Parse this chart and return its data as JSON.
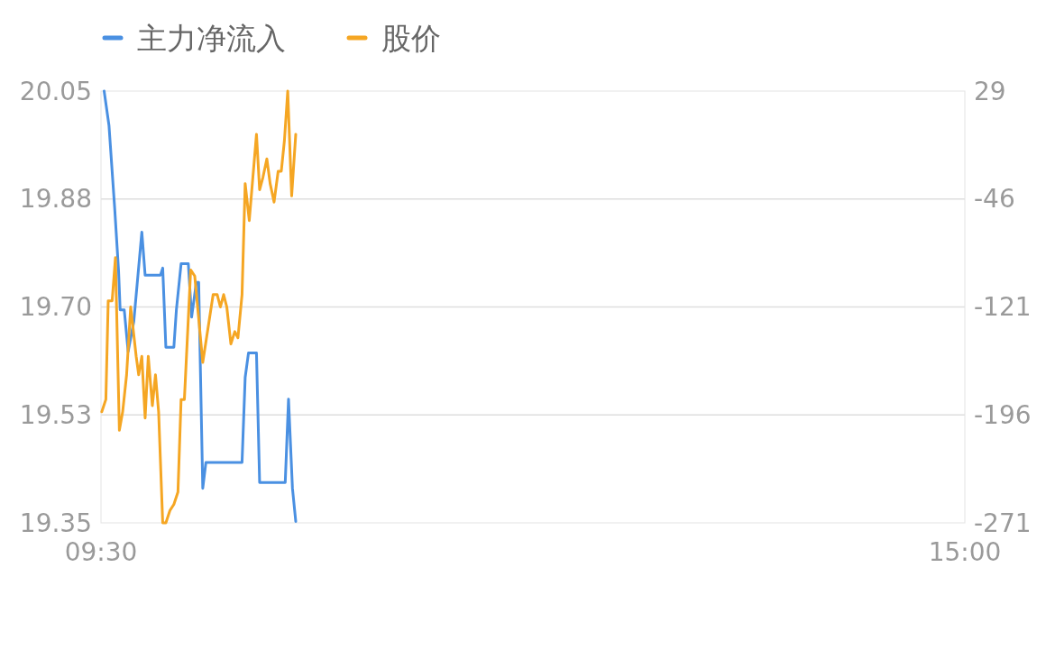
{
  "chart_data": {
    "type": "line",
    "xlim": [
      9.5,
      15
    ],
    "xticks": [
      {
        "value": 9.5,
        "label": "09:30"
      },
      {
        "value": 15,
        "label": "15:00"
      }
    ],
    "ylim": [
      19.35,
      20.05
    ],
    "yticks": [
      {
        "value": 20.05,
        "label": "20.05"
      },
      {
        "value": 19.875,
        "label": "19.88"
      },
      {
        "value": 19.7,
        "label": "19.70"
      },
      {
        "value": 19.525,
        "label": "19.53"
      },
      {
        "value": 19.35,
        "label": "19.35"
      }
    ],
    "y2lim": [
      -271,
      29
    ],
    "y2ticks": [
      29,
      -46,
      -121,
      -196,
      -271
    ],
    "grid": "y",
    "legend": "top left",
    "series": [
      {
        "name": "主力净流入",
        "color": "#4a90e2",
        "axis": "y2",
        "x": [
          9.52,
          9.551,
          9.587,
          9.612,
          9.622,
          9.648,
          9.673,
          9.709,
          9.76,
          9.781,
          9.878,
          9.893,
          9.913,
          9.964,
          9.98,
          10.01,
          10.056,
          10.077,
          10.107,
          10.122,
          10.148,
          10.168,
          10.398,
          10.418,
          10.439,
          10.49,
          10.51,
          10.673,
          10.694,
          10.719,
          10.74
        ],
        "values": [
          29,
          5,
          -52,
          -96,
          -123,
          -123,
          -152,
          -131,
          -69,
          -99,
          -99,
          -94,
          -149,
          -149,
          -123,
          -91,
          -91,
          -128,
          -104,
          -104,
          -247,
          -229,
          -229,
          -170,
          -153,
          -153,
          -243,
          -243,
          -185,
          -247,
          -270
        ]
      },
      {
        "name": "股价",
        "color": "#f5a623",
        "axis": "y",
        "x": [
          9.505,
          9.531,
          9.546,
          9.571,
          9.592,
          9.617,
          9.638,
          9.663,
          9.689,
          9.724,
          9.74,
          9.76,
          9.781,
          9.801,
          9.827,
          9.847,
          9.867,
          9.893,
          9.913,
          9.939,
          9.964,
          9.99,
          10.01,
          10.031,
          10.071,
          10.097,
          10.148,
          10.184,
          10.214,
          10.24,
          10.26,
          10.281,
          10.301,
          10.327,
          10.352,
          10.372,
          10.398,
          10.418,
          10.444,
          10.49,
          10.51,
          10.531,
          10.556,
          10.577,
          10.602,
          10.628,
          10.648,
          10.668,
          10.689,
          10.714,
          10.74
        ],
        "values": [
          19.53,
          19.55,
          19.71,
          19.71,
          19.78,
          19.5,
          19.53,
          19.59,
          19.7,
          19.62,
          19.59,
          19.62,
          19.52,
          19.62,
          19.54,
          19.59,
          19.53,
          19.35,
          19.35,
          19.37,
          19.38,
          19.4,
          19.55,
          19.55,
          19.76,
          19.75,
          19.61,
          19.67,
          19.72,
          19.72,
          19.7,
          19.72,
          19.7,
          19.64,
          19.66,
          19.65,
          19.72,
          19.9,
          19.84,
          19.98,
          19.89,
          19.91,
          19.94,
          19.9,
          19.87,
          19.92,
          19.92,
          19.97,
          20.05,
          19.88,
          19.98
        ]
      }
    ]
  }
}
